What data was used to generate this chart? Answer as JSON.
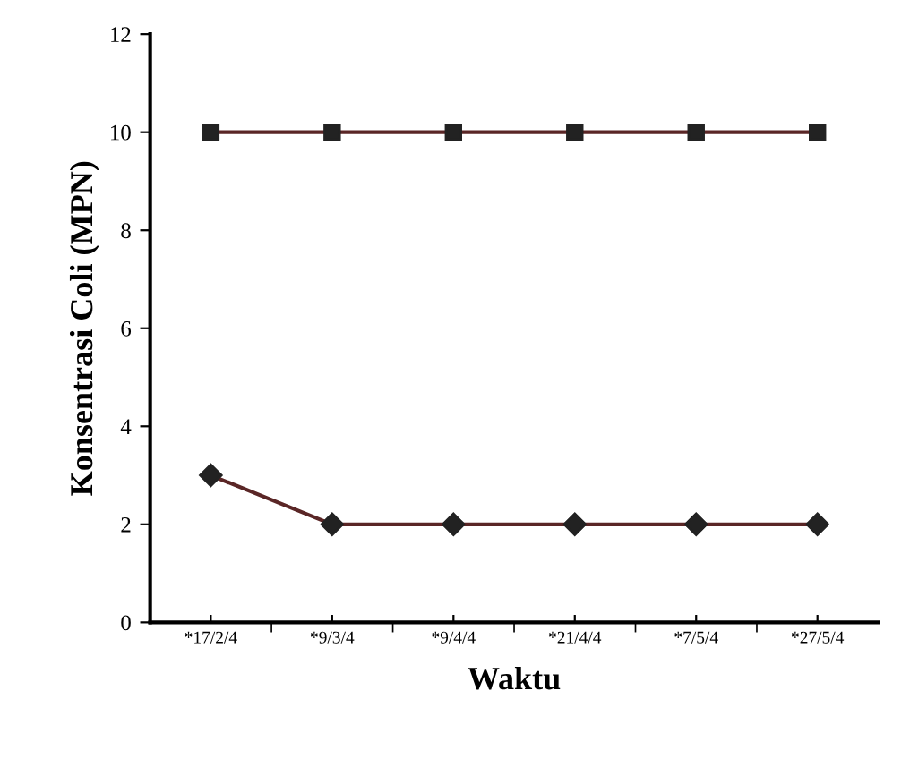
{
  "chart_data": {
    "type": "line",
    "xlabel": "Waktu",
    "ylabel": "Konsentrasi Coli (MPN)",
    "categories": [
      "*17/2/4",
      "*9/3/4",
      "*9/4/4",
      "*21/4/4",
      "*7/5/4",
      "*27/5/4"
    ],
    "series": [
      {
        "color": "#5a2626",
        "marker": "square",
        "values": [
          10,
          10,
          10,
          10,
          10,
          10
        ]
      },
      {
        "color": "#5a2626",
        "marker": "diamond",
        "values": [
          3,
          2,
          2,
          2,
          2,
          2
        ]
      }
    ],
    "ylim": [
      0,
      12
    ],
    "yticks": [
      0,
      2,
      4,
      6,
      8,
      10,
      12
    ],
    "grid": false,
    "legend": false,
    "line_style": "solid"
  }
}
